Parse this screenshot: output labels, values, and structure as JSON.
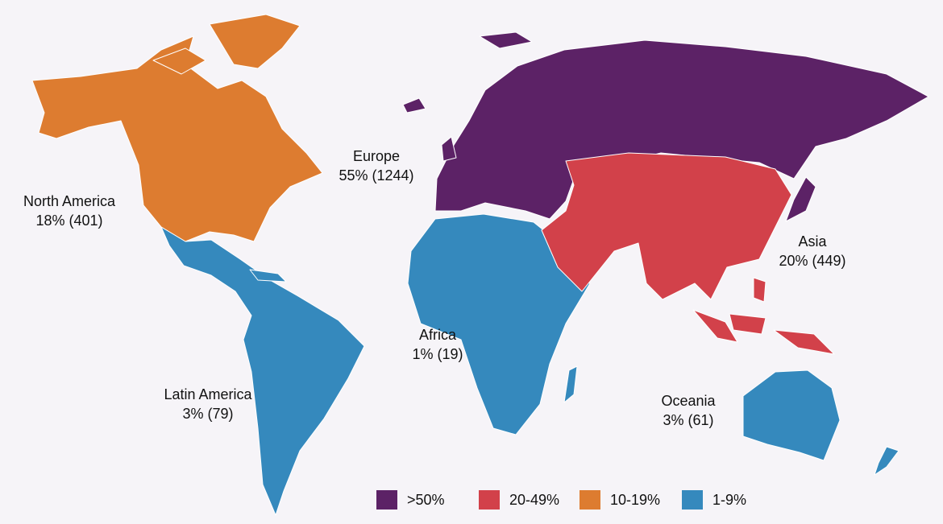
{
  "regions": [
    {
      "name": "North America",
      "stat": "18% (401)",
      "color": "#dd7c30"
    },
    {
      "name": "Latin America",
      "stat": "3% (79)",
      "color": "#3589bd"
    },
    {
      "name": "Europe",
      "stat": "55% (1244)",
      "color": "#5c2266"
    },
    {
      "name": "Africa",
      "stat": "1% (19)",
      "color": "#3589bd"
    },
    {
      "name": "Asia",
      "stat": "20% (449)",
      "color": "#d2414a"
    },
    {
      "name": "Oceania",
      "stat": "3% (61)",
      "color": "#3589bd"
    }
  ],
  "legend": [
    {
      "label": ">50%",
      "color": "#5c2266"
    },
    {
      "label": "20-49%",
      "color": "#d2414a"
    },
    {
      "label": "10-19%",
      "color": "#dd7c30"
    },
    {
      "label": "1-9%",
      "color": "#3589bd"
    }
  ]
}
